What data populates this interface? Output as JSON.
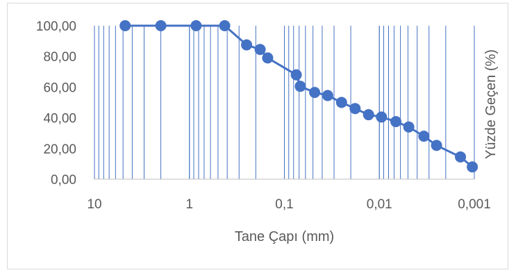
{
  "chart_data": {
    "type": "scatter",
    "title": "",
    "xlabel": "Tane Çapı (mm)",
    "ylabel": "Yüzde Geçen (%)",
    "x_scale": "log",
    "x_reversed": true,
    "xlim": [
      10,
      0.001
    ],
    "ylim": [
      0,
      100
    ],
    "x_tick_labels": [
      "10",
      "1",
      "0,1",
      "0,01",
      "0,001"
    ],
    "y_tick_labels": [
      "0,00",
      "20,00",
      "40,00",
      "60,00",
      "80,00",
      "100,00"
    ],
    "grid": "vertical log minor gridlines",
    "legend": "none",
    "series_color": "#4472c4",
    "points": [
      {
        "x": 4.75,
        "y": 100
      },
      {
        "x": 2.0,
        "y": 100
      },
      {
        "x": 0.85,
        "y": 100
      },
      {
        "x": 0.425,
        "y": 100
      },
      {
        "x": 0.25,
        "y": 87.5
      },
      {
        "x": 0.18,
        "y": 84.5
      },
      {
        "x": 0.15,
        "y": 79
      },
      {
        "x": 0.075,
        "y": 68
      },
      {
        "x": 0.068,
        "y": 60.5
      },
      {
        "x": 0.048,
        "y": 56.5
      },
      {
        "x": 0.035,
        "y": 54.5
      },
      {
        "x": 0.025,
        "y": 50
      },
      {
        "x": 0.018,
        "y": 46
      },
      {
        "x": 0.013,
        "y": 42
      },
      {
        "x": 0.0095,
        "y": 40.5
      },
      {
        "x": 0.0067,
        "y": 37.5
      },
      {
        "x": 0.0049,
        "y": 34
      },
      {
        "x": 0.0034,
        "y": 28
      },
      {
        "x": 0.0025,
        "y": 22
      },
      {
        "x": 0.0014,
        "y": 14.5
      },
      {
        "x": 0.00105,
        "y": 8
      }
    ]
  }
}
